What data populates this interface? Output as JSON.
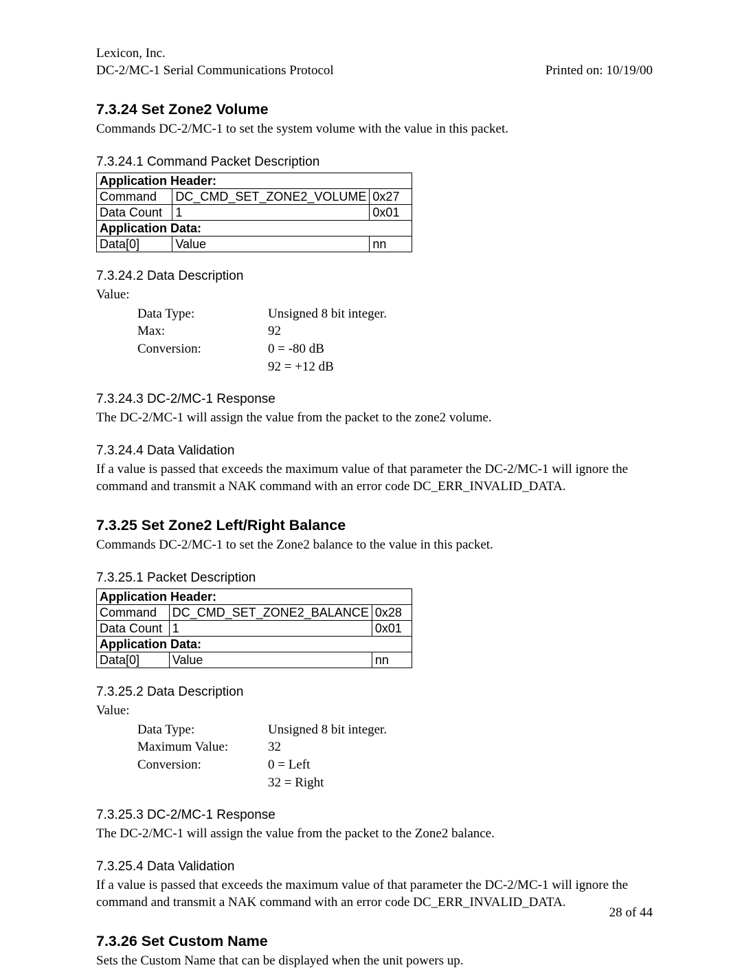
{
  "header": {
    "company": "Lexicon, Inc.",
    "docTitle": "DC-2/MC-1 Serial Communications Protocol",
    "printed": "Printed on: 10/19/00"
  },
  "footer": {
    "pageNum": "28 of 44"
  },
  "s7324": {
    "title": "7.3.24  Set Zone2 Volume",
    "intro": "Commands DC-2/MC-1 to set the system volume with the value in this packet.",
    "s1": {
      "title": "7.3.24.1  Command Packet Description",
      "table": {
        "appHeader": "Application Header:",
        "r1c1": "Command",
        "r1c2": "DC_CMD_SET_ZONE2_VOLUME",
        "r1c3": "0x27",
        "r2c1": "Data Count",
        "r2c2": "1",
        "r2c3": "0x01",
        "appData": "Application Data:",
        "r3c1": "Data[0]",
        "r3c2": "Value",
        "r3c3": "nn"
      }
    },
    "s2": {
      "title": "7.3.24.2  Data Description",
      "lead": "Value:",
      "rows": [
        {
          "label": "Data Type:",
          "value": "Unsigned 8 bit integer."
        },
        {
          "label": "Max:",
          "value": "92"
        },
        {
          "label": "Conversion:",
          "value": "0  =  -80 dB"
        },
        {
          "label": "",
          "value": "92 = +12 dB"
        }
      ]
    },
    "s3": {
      "title": "7.3.24.3  DC-2/MC-1 Response",
      "text": "The DC-2/MC-1 will assign the value from the packet to the zone2 volume."
    },
    "s4": {
      "title": "7.3.24.4  Data Validation",
      "text": "If a value is passed that exceeds the maximum value of that parameter the DC-2/MC-1 will ignore the command and transmit a NAK command with an error code DC_ERR_INVALID_DATA."
    }
  },
  "s7325": {
    "title": "7.3.25  Set Zone2 Left/Right Balance",
    "intro": "Commands DC-2/MC-1 to set the Zone2 balance to the value in this packet.",
    "s1": {
      "title": "7.3.25.1  Packet Description",
      "table": {
        "appHeader": "Application Header:",
        "r1c1": "Command",
        "r1c2": "DC_CMD_SET_ZONE2_BALANCE",
        "r1c3": "0x28",
        "r2c1": "Data Count",
        "r2c2": "1",
        "r2c3": "0x01",
        "appData": "Application Data:",
        "r3c1": "Data[0]",
        "r3c2": "Value",
        "r3c3": "nn"
      }
    },
    "s2": {
      "title": "7.3.25.2  Data Description",
      "lead": "Value:",
      "rows": [
        {
          "label": "Data Type:",
          "value": "Unsigned 8 bit integer."
        },
        {
          "label": "Maximum Value:",
          "value": "32"
        },
        {
          "label": "Conversion:",
          "value": "0 =  Left"
        },
        {
          "label": "",
          "value": "32 = Right"
        }
      ]
    },
    "s3": {
      "title": "7.3.25.3  DC-2/MC-1 Response",
      "text": "The DC-2/MC-1 will assign the value from the packet to the Zone2 balance."
    },
    "s4": {
      "title": "7.3.25.4  Data Validation",
      "text": "If a value is passed that exceeds the maximum value of that parameter the DC-2/MC-1 will ignore the command and transmit a NAK command with an error code DC_ERR_INVALID_DATA."
    }
  },
  "s7326": {
    "title": "7.3.26  Set Custom Name",
    "intro": "Sets the Custom Name that can be displayed when the  unit powers up."
  }
}
